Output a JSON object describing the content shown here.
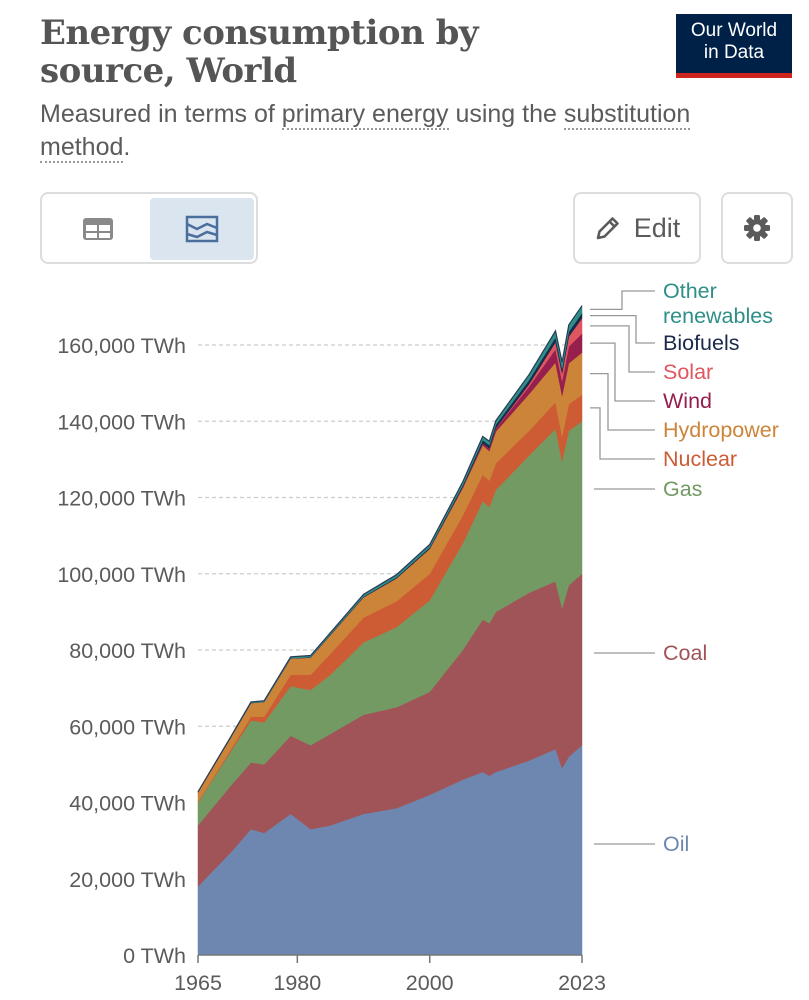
{
  "header": {
    "title": "Energy consumption by source, World",
    "subtitle_pre": "Measured in terms of ",
    "subtitle_link1": "primary energy",
    "subtitle_mid": " using the ",
    "subtitle_link2": "substitution method",
    "subtitle_post": ".",
    "logo_line1": "Our World",
    "logo_line2": "in Data"
  },
  "toolbar": {
    "edit_label": "Edit"
  },
  "colors": {
    "Oil": "#6d87b0",
    "Coal": "#a05457",
    "Gas": "#729a62",
    "Nuclear": "#cd5c34",
    "Hydropower": "#cc8439",
    "Wind": "#961f4d",
    "Solar": "#e0565f",
    "Biofuels": "#1b2a4a",
    "Other renewables": "#2d8f87"
  },
  "chart_data": {
    "type": "area",
    "stacked": true,
    "title": "Energy consumption by source, World",
    "unit": "TWh",
    "ylim": [
      0,
      170000
    ],
    "y_ticks": [
      "0 TWh",
      "20,000 TWh",
      "40,000 TWh",
      "60,000 TWh",
      "80,000 TWh",
      "100,000 TWh",
      "120,000 TWh",
      "140,000 TWh",
      "160,000 TWh"
    ],
    "x_ticks": [
      "1965",
      "1980",
      "2000",
      "2023"
    ],
    "x": [
      1965,
      1970,
      1973,
      1975,
      1979,
      1982,
      1985,
      1990,
      1995,
      2000,
      2005,
      2008,
      2009,
      2010,
      2015,
      2019,
      2020,
      2021,
      2023
    ],
    "legend_position": "right",
    "series": [
      {
        "name": "Oil",
        "values": [
          18000,
          27000,
          33000,
          32000,
          37000,
          33000,
          34000,
          37000,
          38500,
          42000,
          46000,
          48000,
          47000,
          48000,
          51000,
          54000,
          49000,
          52000,
          55000
        ]
      },
      {
        "name": "Coal",
        "values": [
          16000,
          17500,
          17500,
          18000,
          20500,
          22000,
          24000,
          26000,
          26500,
          27000,
          34000,
          40000,
          40000,
          42000,
          44000,
          44000,
          42000,
          45000,
          45000
        ]
      },
      {
        "name": "Gas",
        "values": [
          6000,
          9000,
          11000,
          11000,
          13000,
          14500,
          15500,
          19000,
          21000,
          24000,
          28000,
          31000,
          30500,
          32000,
          36000,
          40000,
          38500,
          40500,
          40000
        ]
      },
      {
        "name": "Nuclear",
        "values": [
          200,
          500,
          1000,
          1500,
          3000,
          4000,
          5500,
          6500,
          6800,
          7000,
          7300,
          7000,
          6900,
          7000,
          6500,
          7000,
          6600,
          7000,
          7000
        ]
      },
      {
        "name": "Hydropower",
        "values": [
          2500,
          3200,
          3600,
          3900,
          4300,
          4500,
          4900,
          5300,
          6000,
          6500,
          7200,
          7700,
          7800,
          8300,
          9600,
          10400,
          10600,
          10700,
          11000
        ]
      },
      {
        "name": "Wind",
        "values": [
          0,
          0,
          0,
          0,
          0,
          0,
          0,
          10,
          20,
          80,
          250,
          500,
          600,
          800,
          2000,
          3500,
          3800,
          4400,
          5000
        ]
      },
      {
        "name": "Solar",
        "values": [
          0,
          0,
          0,
          0,
          0,
          0,
          0,
          0,
          1,
          3,
          10,
          30,
          60,
          100,
          600,
          1800,
          2100,
          2600,
          4000
        ]
      },
      {
        "name": "Biofuels",
        "values": [
          0,
          0,
          0,
          0,
          20,
          100,
          150,
          200,
          250,
          300,
          450,
          800,
          850,
          900,
          1100,
          1300,
          1200,
          1300,
          1400
        ]
      },
      {
        "name": "Other renewables",
        "values": [
          100,
          200,
          250,
          300,
          400,
          450,
          500,
          600,
          700,
          800,
          900,
          1000,
          1050,
          1100,
          1400,
          1700,
          1750,
          1800,
          1900
        ]
      }
    ],
    "legend_labels": [
      {
        "name": "Other renewables",
        "line1": "Other",
        "line2": "renewables"
      },
      {
        "name": "Biofuels",
        "line1": "Biofuels"
      },
      {
        "name": "Solar",
        "line1": "Solar"
      },
      {
        "name": "Wind",
        "line1": "Wind"
      },
      {
        "name": "Hydropower",
        "line1": "Hydropower"
      },
      {
        "name": "Nuclear",
        "line1": "Nuclear"
      },
      {
        "name": "Gas",
        "line1": "Gas"
      },
      {
        "name": "Coal",
        "line1": "Coal"
      },
      {
        "name": "Oil",
        "line1": "Oil"
      }
    ]
  }
}
